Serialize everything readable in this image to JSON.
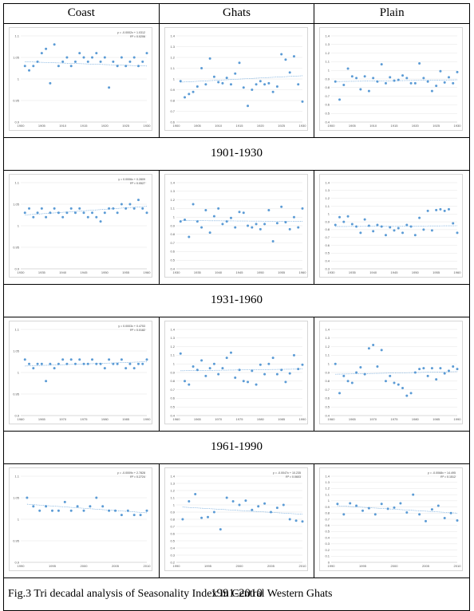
{
  "headers": [
    "Coast",
    "Ghats",
    "Plain"
  ],
  "periods": [
    "1901-1930",
    "1931-1960",
    "1961-1990",
    "1991-2010"
  ],
  "caption": "Fig.3 Tri decadal analysis of Seasonality Index in Central Western Ghats",
  "colors": {
    "point": "#5b9bd5",
    "trend": "#5b9bd5",
    "grid": "#e4e4e4",
    "border": "#000000"
  },
  "chart_data": [
    {
      "type": "scatter",
      "region": "Coast",
      "period": "1901-1930",
      "equation": "y = -0.0002x + 1.0312",
      "r2": "R² = 0.0206",
      "ylim": [
        0.9,
        1.1
      ],
      "yticks": [
        "0.9",
        "0.95",
        "1",
        "1.05",
        "1.1"
      ],
      "xlim": [
        1900,
        1930
      ],
      "xticks": [
        "1900",
        "1905",
        "1910",
        "1915",
        "1920",
        "1925",
        "1930"
      ],
      "x": [
        1901,
        1902,
        1903,
        1904,
        1905,
        1906,
        1907,
        1908,
        1909,
        1910,
        1911,
        1912,
        1913,
        1914,
        1915,
        1916,
        1917,
        1918,
        1919,
        1920,
        1921,
        1922,
        1923,
        1924,
        1925,
        1926,
        1927,
        1928,
        1929,
        1930
      ],
      "y": [
        1.03,
        1.02,
        1.03,
        1.04,
        1.06,
        1.07,
        0.99,
        1.08,
        1.03,
        1.04,
        1.05,
        1.03,
        1.04,
        1.06,
        1.05,
        1.04,
        1.05,
        1.06,
        1.04,
        1.05,
        0.98,
        1.04,
        1.03,
        1.05,
        1.03,
        1.04,
        1.05,
        1.03,
        1.04,
        1.06
      ],
      "trend": [
        1.04,
        1.03
      ]
    },
    {
      "type": "scatter",
      "region": "Ghats",
      "period": "1901-1930",
      "equation": "",
      "r2": "",
      "ylim": [
        0.6,
        1.4
      ],
      "yticks": [
        "0.6",
        "0.7",
        "0.8",
        "0.9",
        "1",
        "1.1",
        "1.2",
        "1.3",
        "1.4"
      ],
      "xlim": [
        1900,
        1930
      ],
      "xticks": [
        "1900",
        "1905",
        "1910",
        "1915",
        "1920",
        "1925",
        "1930"
      ],
      "x": [
        1901,
        1902,
        1903,
        1904,
        1905,
        1906,
        1907,
        1908,
        1909,
        1910,
        1911,
        1912,
        1913,
        1914,
        1915,
        1916,
        1917,
        1918,
        1919,
        1920,
        1921,
        1922,
        1923,
        1924,
        1925,
        1926,
        1927,
        1928,
        1929,
        1930
      ],
      "y": [
        0.98,
        0.83,
        0.86,
        0.88,
        0.93,
        1.1,
        0.95,
        1.19,
        1.02,
        0.97,
        0.96,
        1.01,
        0.95,
        1.05,
        1.15,
        0.92,
        0.75,
        0.9,
        0.95,
        0.98,
        0.95,
        0.96,
        0.88,
        0.93,
        1.23,
        1.18,
        1.06,
        1.21,
        0.95,
        0.79
      ],
      "trend": [
        0.97,
        1.03
      ]
    },
    {
      "type": "scatter",
      "region": "Plain",
      "period": "1901-1930",
      "equation": "",
      "r2": "",
      "ylim": [
        0.4,
        1.4
      ],
      "yticks": [
        "0.4",
        "0.5",
        "0.6",
        "0.7",
        "0.8",
        "0.9",
        "1",
        "1.1",
        "1.2",
        "1.3",
        "1.4"
      ],
      "xlim": [
        1900,
        1930
      ],
      "xticks": [
        "1900",
        "1905",
        "1910",
        "1915",
        "1920",
        "1925",
        "1930"
      ],
      "x": [
        1901,
        1902,
        1903,
        1904,
        1905,
        1906,
        1907,
        1908,
        1909,
        1910,
        1911,
        1912,
        1913,
        1914,
        1915,
        1916,
        1917,
        1918,
        1919,
        1920,
        1921,
        1922,
        1923,
        1924,
        1925,
        1926,
        1927,
        1928,
        1929,
        1930
      ],
      "y": [
        0.87,
        0.66,
        0.83,
        1.02,
        0.93,
        0.91,
        0.78,
        0.93,
        0.76,
        0.91,
        0.87,
        1.07,
        0.85,
        0.92,
        0.88,
        0.89,
        0.94,
        0.91,
        0.85,
        0.85,
        1.08,
        0.91,
        0.87,
        0.76,
        0.82,
        0.99,
        0.86,
        0.92,
        0.85,
        0.98
      ],
      "trend": [
        0.87,
        0.89
      ]
    },
    {
      "type": "scatter",
      "region": "Coast",
      "period": "1931-1960",
      "equation": "y = 0.0006x + 0.2809",
      "r2": "R² = 0.0527",
      "ylim": [
        0.9,
        1.1
      ],
      "yticks": [
        "0.9",
        "0.95",
        "1",
        "1.05",
        "1.1"
      ],
      "xlim": [
        1930,
        1960
      ],
      "xticks": [
        "1930",
        "1935",
        "1940",
        "1945",
        "1950",
        "1955",
        "1960"
      ],
      "x": [
        1931,
        1932,
        1933,
        1934,
        1935,
        1936,
        1937,
        1938,
        1939,
        1940,
        1941,
        1942,
        1943,
        1944,
        1945,
        1946,
        1947,
        1948,
        1949,
        1950,
        1951,
        1952,
        1953,
        1954,
        1955,
        1956,
        1957,
        1958,
        1959,
        1960
      ],
      "y": [
        1.03,
        1.04,
        1.02,
        1.03,
        1.04,
        1.02,
        1.03,
        1.04,
        1.03,
        1.02,
        1.03,
        1.04,
        1.03,
        1.04,
        1.03,
        1.02,
        1.03,
        1.02,
        1.01,
        1.03,
        1.04,
        1.04,
        1.03,
        1.05,
        1.04,
        1.05,
        1.04,
        1.06,
        1.04,
        1.03
      ],
      "trend": [
        1.025,
        1.045
      ]
    },
    {
      "type": "scatter",
      "region": "Ghats",
      "period": "1931-1960",
      "equation": "",
      "r2": "",
      "ylim": [
        0.4,
        1.4
      ],
      "yticks": [
        "0.4",
        "0.5",
        "0.6",
        "0.7",
        "0.8",
        "0.9",
        "1",
        "1.1",
        "1.2",
        "1.3",
        "1.4"
      ],
      "xlim": [
        1930,
        1960
      ],
      "xticks": [
        "1930",
        "1935",
        "1940",
        "1945",
        "1950",
        "1955",
        "1960"
      ],
      "x": [
        1931,
        1932,
        1933,
        1934,
        1935,
        1936,
        1937,
        1938,
        1939,
        1940,
        1941,
        1942,
        1943,
        1944,
        1945,
        1946,
        1947,
        1948,
        1949,
        1950,
        1951,
        1952,
        1953,
        1954,
        1955,
        1956,
        1957,
        1958,
        1959,
        1960
      ],
      "y": [
        0.95,
        0.97,
        0.77,
        1.15,
        0.95,
        0.88,
        1.08,
        0.82,
        1.01,
        1.1,
        0.92,
        0.95,
        0.99,
        0.88,
        1.06,
        1.05,
        0.9,
        0.88,
        0.92,
        0.86,
        0.92,
        1.08,
        0.72,
        0.93,
        1.12,
        0.94,
        0.86,
        1.0,
        0.88,
        1.1
      ],
      "trend": [
        0.96,
        0.95
      ]
    },
    {
      "type": "scatter",
      "region": "Plain",
      "period": "1931-1960",
      "equation": "",
      "r2": "",
      "ylim": [
        0.3,
        1.4
      ],
      "yticks": [
        "0.3",
        "0.4",
        "0.5",
        "0.6",
        "0.7",
        "0.8",
        "0.9",
        "1",
        "1.1",
        "1.2",
        "1.3",
        "1.4"
      ],
      "xlim": [
        1930,
        1960
      ],
      "xticks": [
        "1930",
        "1935",
        "1940",
        "1945",
        "1950",
        "1955",
        "1960"
      ],
      "x": [
        1931,
        1932,
        1933,
        1934,
        1935,
        1936,
        1937,
        1938,
        1939,
        1940,
        1941,
        1942,
        1943,
        1944,
        1945,
        1946,
        1947,
        1948,
        1949,
        1950,
        1951,
        1952,
        1953,
        1954,
        1955,
        1956,
        1957,
        1958,
        1959,
        1960
      ],
      "y": [
        0.86,
        0.96,
        0.9,
        0.97,
        0.87,
        0.84,
        0.76,
        0.93,
        0.85,
        0.78,
        0.86,
        0.84,
        0.73,
        0.83,
        0.79,
        0.82,
        0.76,
        0.86,
        0.84,
        0.73,
        0.95,
        0.8,
        1.04,
        0.79,
        1.05,
        1.06,
        1.04,
        1.06,
        0.88,
        0.76
      ],
      "trend": [
        0.84,
        0.85
      ]
    },
    {
      "type": "scatter",
      "region": "Coast",
      "period": "1961-1990",
      "equation": "y = 0.0003x + 0.4753",
      "r2": "R² = 0.0182",
      "ylim": [
        0.9,
        1.1
      ],
      "yticks": [
        "0.9",
        "0.95",
        "1",
        "1.05",
        "1.1"
      ],
      "xlim": [
        1960,
        1990
      ],
      "xticks": [
        "1960",
        "1965",
        "1970",
        "1975",
        "1980",
        "1985",
        "1990"
      ],
      "x": [
        1961,
        1962,
        1963,
        1964,
        1965,
        1966,
        1967,
        1968,
        1969,
        1970,
        1971,
        1972,
        1973,
        1974,
        1975,
        1976,
        1977,
        1978,
        1979,
        1980,
        1981,
        1982,
        1983,
        1984,
        1985,
        1986,
        1987,
        1988,
        1989,
        1990
      ],
      "y": [
        1.03,
        1.02,
        1.01,
        1.02,
        1.02,
        0.98,
        1.02,
        1.01,
        1.02,
        1.03,
        1.02,
        1.03,
        1.02,
        1.03,
        1.02,
        1.02,
        1.03,
        1.02,
        1.02,
        1.01,
        1.03,
        1.02,
        1.02,
        1.03,
        1.01,
        1.02,
        1.01,
        1.02,
        1.02,
        1.03
      ],
      "trend": [
        1.015,
        1.025
      ]
    },
    {
      "type": "scatter",
      "region": "Ghats",
      "period": "1961-1990",
      "equation": "",
      "r2": "",
      "ylim": [
        0.4,
        1.4
      ],
      "yticks": [
        "0.4",
        "0.5",
        "0.6",
        "0.7",
        "0.8",
        "0.9",
        "1",
        "1.1",
        "1.2",
        "1.3",
        "1.4"
      ],
      "xlim": [
        1960,
        1990
      ],
      "xticks": [
        "1960",
        "1965",
        "1970",
        "1975",
        "1980",
        "1985",
        "1990"
      ],
      "x": [
        1961,
        1962,
        1963,
        1964,
        1965,
        1966,
        1967,
        1968,
        1969,
        1970,
        1971,
        1972,
        1973,
        1974,
        1975,
        1976,
        1977,
        1978,
        1979,
        1980,
        1981,
        1982,
        1983,
        1984,
        1985,
        1986,
        1987,
        1988,
        1989,
        1990
      ],
      "y": [
        1.12,
        0.8,
        0.76,
        0.97,
        0.93,
        1.04,
        0.86,
        0.95,
        1.0,
        0.88,
        0.95,
        1.07,
        1.13,
        0.84,
        0.93,
        0.8,
        0.79,
        0.92,
        0.76,
        0.99,
        0.88,
        1.0,
        1.07,
        0.88,
        0.93,
        0.79,
        0.89,
        1.1,
        0.94,
        0.99
      ],
      "trend": [
        0.92,
        0.94
      ]
    },
    {
      "type": "scatter",
      "region": "Plain",
      "period": "1961-1990",
      "equation": "",
      "r2": "",
      "ylim": [
        0.4,
        1.4
      ],
      "yticks": [
        "0.4",
        "0.5",
        "0.6",
        "0.7",
        "0.8",
        "0.9",
        "1",
        "1.1",
        "1.2",
        "1.3",
        "1.4"
      ],
      "xlim": [
        1960,
        1990
      ],
      "xticks": [
        "1960",
        "1965",
        "1970",
        "1975",
        "1980",
        "1985",
        "1990"
      ],
      "x": [
        1961,
        1962,
        1963,
        1964,
        1965,
        1966,
        1967,
        1968,
        1969,
        1970,
        1971,
        1972,
        1973,
        1974,
        1975,
        1976,
        1977,
        1978,
        1979,
        1980,
        1981,
        1982,
        1983,
        1984,
        1985,
        1986,
        1987,
        1988,
        1989,
        1990
      ],
      "y": [
        1.0,
        0.66,
        0.86,
        0.8,
        0.78,
        0.9,
        0.96,
        0.88,
        1.18,
        1.22,
        0.97,
        1.16,
        0.8,
        0.86,
        0.78,
        0.76,
        0.72,
        0.63,
        0.66,
        0.9,
        0.94,
        0.95,
        0.86,
        0.95,
        0.82,
        0.95,
        0.89,
        0.92,
        0.97,
        0.94
      ],
      "trend": [
        0.88,
        0.91
      ]
    },
    {
      "type": "scatter",
      "region": "Coast",
      "period": "1991-2010",
      "equation": "y = -0.0009x + 2.7828",
      "r2": "R² = 0.2724",
      "ylim": [
        0.9,
        1.1
      ],
      "yticks": [
        "0.9",
        "0.95",
        "1",
        "1.05",
        "1.1"
      ],
      "xlim": [
        1990,
        2010
      ],
      "xticks": [
        "1990",
        "1995",
        "2000",
        "2005",
        "2010"
      ],
      "x": [
        1991,
        1992,
        1993,
        1994,
        1995,
        1996,
        1997,
        1998,
        1999,
        2000,
        2001,
        2002,
        2003,
        2004,
        2005,
        2006,
        2007,
        2008,
        2009,
        2010
      ],
      "y": [
        1.05,
        1.03,
        1.02,
        1.03,
        1.02,
        1.02,
        1.04,
        1.02,
        1.03,
        1.02,
        1.03,
        1.05,
        1.03,
        1.02,
        1.02,
        1.01,
        1.02,
        1.01,
        1.01,
        1.02
      ],
      "trend": [
        1.035,
        1.015
      ]
    },
    {
      "type": "scatter",
      "region": "Ghats",
      "period": "1991-2010",
      "equation": "y = -0.0047x + 10.235",
      "r2": "R² = 0.0603",
      "ylim": [
        0.2,
        1.4
      ],
      "yticks": [
        "0.2",
        "0.3",
        "0.4",
        "0.5",
        "0.6",
        "0.7",
        "0.8",
        "0.9",
        "1",
        "1.1",
        "1.2",
        "1.3",
        "1.4"
      ],
      "xlim": [
        1990,
        2010
      ],
      "xticks": [
        "1990",
        "1995",
        "2000",
        "2005",
        "2010"
      ],
      "x": [
        1991,
        1992,
        1993,
        1994,
        1995,
        1996,
        1997,
        1998,
        1999,
        2000,
        2001,
        2002,
        2003,
        2004,
        2005,
        2006,
        2007,
        2008,
        2009,
        2010
      ],
      "y": [
        0.8,
        1.05,
        1.15,
        0.82,
        0.83,
        0.9,
        0.66,
        1.1,
        1.05,
        1.0,
        1.06,
        0.93,
        0.98,
        1.02,
        0.9,
        0.96,
        1.0,
        0.8,
        0.78,
        0.77
      ],
      "trend": [
        0.97,
        0.87
      ]
    },
    {
      "type": "scatter",
      "region": "Plain",
      "period": "1991-2010",
      "equation": "y = -0.0068x + 14.495",
      "r2": "R² = 0.1512",
      "ylim": [
        0,
        1.4
      ],
      "yticks": [
        "0",
        "0.1",
        "0.2",
        "0.3",
        "0.4",
        "0.5",
        "0.6",
        "0.7",
        "0.8",
        "0.9",
        "1",
        "1.1",
        "1.2",
        "1.3",
        "1.4"
      ],
      "xlim": [
        1990,
        2010
      ],
      "xticks": [
        "1990",
        "1995",
        "2000",
        "2005",
        "2010"
      ],
      "x": [
        1991,
        1992,
        1993,
        1994,
        1995,
        1996,
        1997,
        1998,
        1999,
        2000,
        2001,
        2002,
        2003,
        2004,
        2005,
        2006,
        2007,
        2008,
        2009,
        2010
      ],
      "y": [
        0.95,
        0.78,
        0.96,
        0.92,
        0.84,
        0.88,
        0.78,
        0.95,
        0.87,
        0.89,
        0.96,
        0.81,
        1.1,
        0.78,
        0.67,
        0.86,
        0.92,
        0.72,
        0.8,
        0.68
      ],
      "trend": [
        0.92,
        0.8
      ]
    }
  ]
}
